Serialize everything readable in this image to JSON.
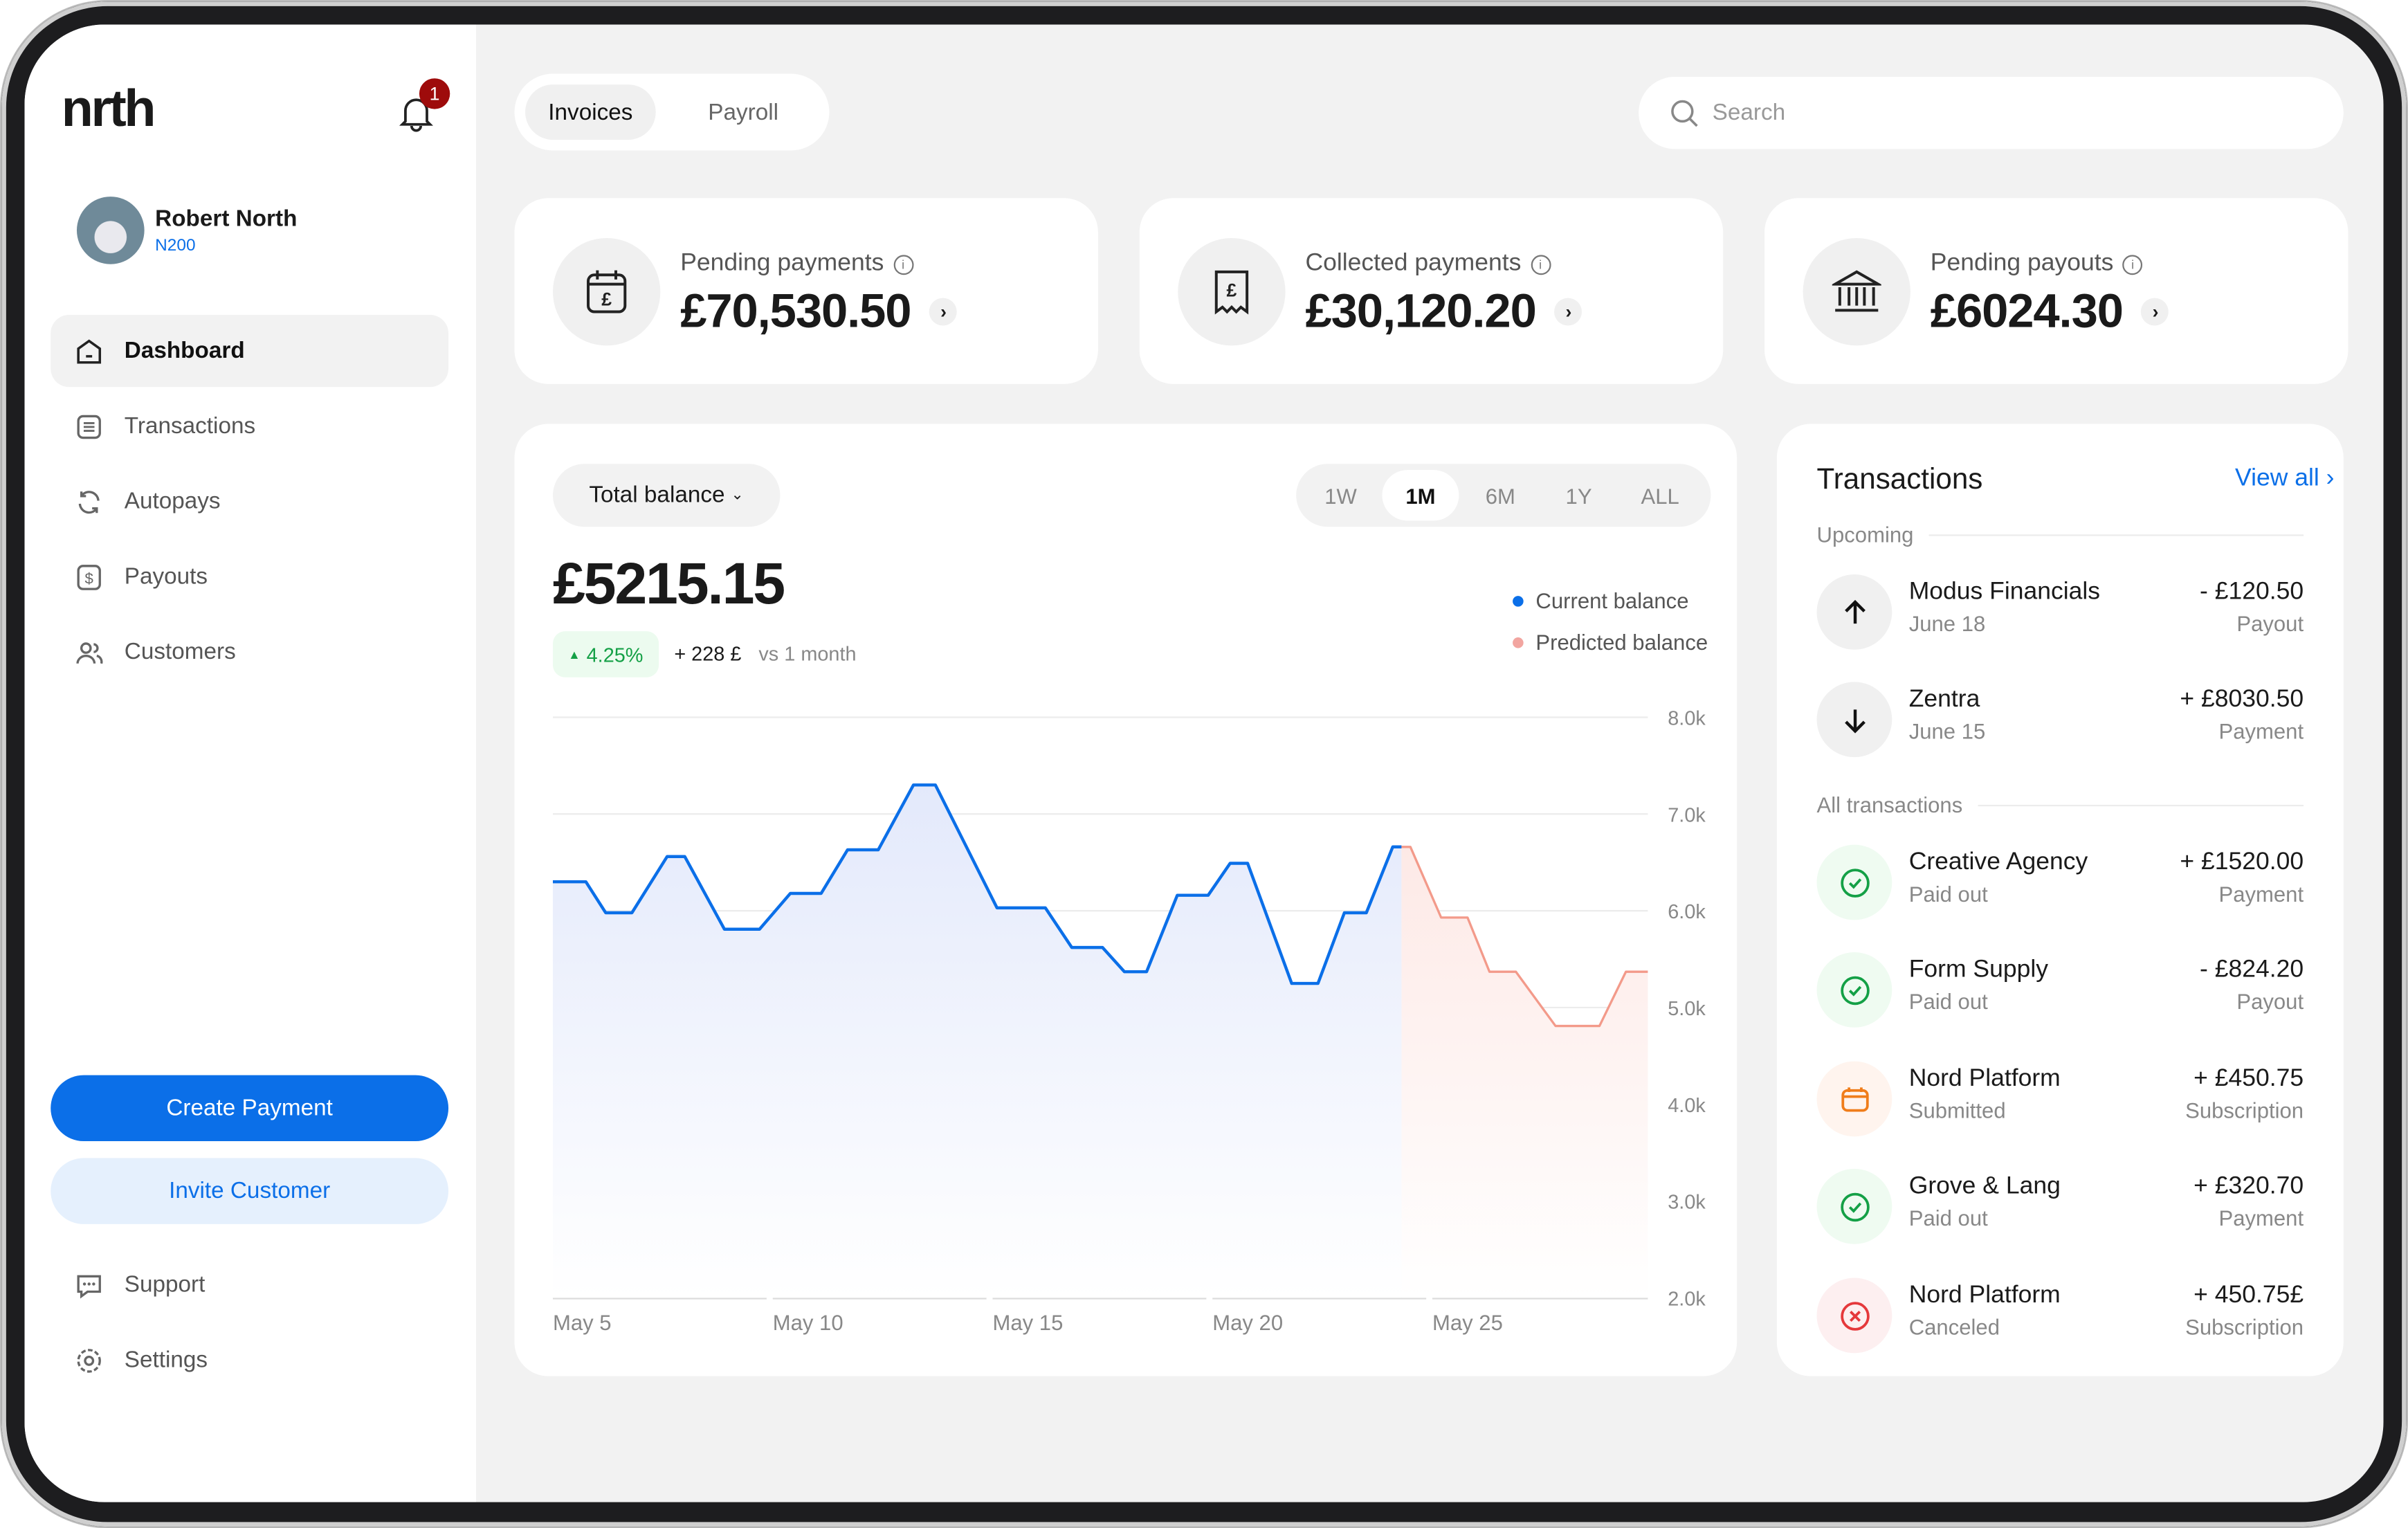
{
  "brand": {
    "logo": "nrth",
    "notification_count": "1"
  },
  "user": {
    "name": "Robert North",
    "id": "N200"
  },
  "sidebar": {
    "items": [
      {
        "label": "Dashboard",
        "icon": "home-icon",
        "active": true
      },
      {
        "label": "Transactions",
        "icon": "list-icon"
      },
      {
        "label": "Autopays",
        "icon": "refresh-icon"
      },
      {
        "label": "Payouts",
        "icon": "dollar-icon"
      },
      {
        "label": "Customers",
        "icon": "users-icon"
      }
    ],
    "create_payment": "Create Payment",
    "invite_customer": "Invite Customer",
    "support": "Support",
    "settings": "Settings"
  },
  "header": {
    "tabs": [
      {
        "label": "Invoices",
        "active": true
      },
      {
        "label": "Payroll"
      }
    ],
    "search_placeholder": "Search"
  },
  "stats": [
    {
      "label": "Pending payments",
      "amount": "£70,530.50",
      "icon": "calendar-pound-icon"
    },
    {
      "label": "Collected payments",
      "amount": "£30,120.20",
      "icon": "receipt-pound-icon"
    },
    {
      "label": "Pending payouts",
      "amount": "£6024.30",
      "icon": "bank-icon"
    }
  ],
  "balance": {
    "selector": "Total balance",
    "periods": [
      "1W",
      "1M",
      "6M",
      "1Y",
      "ALL"
    ],
    "active_period": "1M",
    "value": "£5215.15",
    "change_pct": "4.25%",
    "change_abs": "+ 228 £",
    "compare": "vs 1 month"
  },
  "colors": {
    "accent": "#0b6fe8",
    "current": "#0b6fe8",
    "predicted": "#f39a8a",
    "positive": "#14a046",
    "negative": "#e5383b",
    "pending": "#f07d1a"
  },
  "chart_data": {
    "type": "line",
    "ylim": [
      2000,
      8000
    ],
    "y_ticks": [
      "8.0k",
      "7.0k",
      "6.0k",
      "5.0k",
      "4.0k",
      "3.0k",
      "2.0k"
    ],
    "y_tick_values": [
      8000,
      7000,
      6000,
      5000,
      4000,
      3000,
      2000
    ],
    "x_ticks": [
      "May 5",
      "May 10",
      "May 15",
      "May 20",
      "May 25"
    ],
    "x_tick_values": [
      5,
      10,
      15,
      20,
      25
    ],
    "xlim": [
      5,
      29.9
    ],
    "grid": true,
    "legend": "top-right",
    "series": [
      {
        "name": "Current balance",
        "color": "#0b6fe8",
        "x": [
          5,
          5.75,
          6.2,
          6.8,
          7.6,
          8.0,
          8.9,
          9.7,
          10.4,
          11.1,
          11.7,
          12.4,
          13.2,
          13.7,
          15.1,
          16.2,
          16.8,
          17.5,
          18.0,
          18.5,
          19.2,
          19.9,
          20.4,
          20.8,
          21.8,
          22.4,
          23.0,
          23.5,
          24.1,
          24.3
        ],
        "y": [
          6300,
          6300,
          5980,
          5980,
          6560,
          6560,
          5810,
          5810,
          6180,
          6180,
          6630,
          6630,
          7300,
          7300,
          6030,
          6030,
          5620,
          5620,
          5370,
          5370,
          6160,
          6160,
          6490,
          6490,
          5250,
          5250,
          5980,
          5980,
          6660,
          6660
        ]
      },
      {
        "name": "Predicted balance",
        "color": "#f39a8a",
        "x": [
          24.3,
          24.5,
          25.2,
          25.8,
          26.3,
          26.9,
          27.8,
          28.8,
          29.4,
          29.9
        ],
        "y": [
          6660,
          6660,
          5930,
          5930,
          5370,
          5370,
          4810,
          4810,
          5370,
          5370
        ]
      }
    ]
  },
  "transactions": {
    "title": "Transactions",
    "view_all": "View all ›",
    "upcoming_label": "Upcoming",
    "all_label": "All transactions",
    "upcoming": [
      {
        "name": "Modus Financials",
        "sub": "June 18",
        "amount": "- £120.50",
        "type": "Payout",
        "icon": "arrow-up-icon"
      },
      {
        "name": "Zentra",
        "sub": "June 15",
        "amount": "+ £8030.50",
        "type": "Payment",
        "icon": "arrow-down-icon"
      }
    ],
    "all": [
      {
        "name": "Creative Agency",
        "sub": "Paid out",
        "amount": "+ £1520.00",
        "type": "Payment",
        "icon": "check-circle-icon"
      },
      {
        "name": "Form Supply",
        "sub": "Paid out",
        "amount": "- £824.20",
        "type": "Payout",
        "icon": "check-circle-icon"
      },
      {
        "name": "Nord Platform",
        "sub": "Submitted",
        "amount": "+ £450.75",
        "type": "Subscription",
        "icon": "calendar-icon"
      },
      {
        "name": "Grove & Lang",
        "sub": "Paid out",
        "amount": "+ £320.70",
        "type": "Payment",
        "icon": "check-circle-icon"
      },
      {
        "name": "Nord Platform",
        "sub": "Canceled",
        "amount": "+ 450.75£",
        "type": "Subscription",
        "icon": "x-circle-icon"
      }
    ]
  }
}
